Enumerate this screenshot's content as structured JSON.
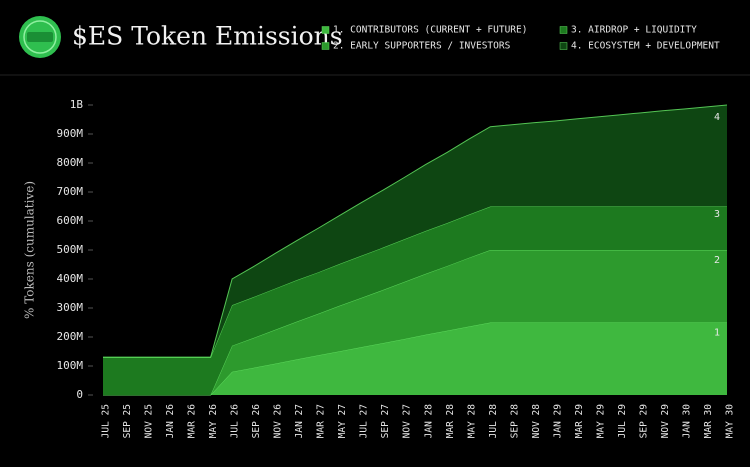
{
  "chart_data": {
    "type": "stacked_area",
    "title": "$ES Token Emissions",
    "y_label": "% Tokens (cumulative)",
    "categories": [
      "JUL 25",
      "SEP 25",
      "NOV 25",
      "JAN 26",
      "MAR 26",
      "MAY 26",
      "JUL 26",
      "SEP 26",
      "NOV 26",
      "JAN 27",
      "MAR 27",
      "MAY 27",
      "JUL 27",
      "SEP 27",
      "NOV 27",
      "JAN 28",
      "MAR 28",
      "MAY 28",
      "JUL 28",
      "SEP 28",
      "NOV 28",
      "JAN 29",
      "MAR 29",
      "MAY 29",
      "JUL 29",
      "SEP 29",
      "NOV 29",
      "JAN 30",
      "MAR 30",
      "MAY 30"
    ],
    "series": [
      {
        "name": "1. CONTRIBUTORS (CURRENT + FUTURE)",
        "tag": "1",
        "color": "#3fb83f",
        "values": [
          0,
          0,
          0,
          0,
          0,
          0,
          80,
          94,
          108,
          123,
          137,
          151,
          165,
          179,
          193,
          208,
          222,
          236,
          250,
          250,
          250,
          250,
          250,
          250,
          250,
          250,
          250,
          250,
          250,
          250
        ]
      },
      {
        "name": "2. EARLY SUPPORTERS / INVESTORS",
        "tag": "2",
        "color": "#2d9a2d",
        "values": [
          0,
          0,
          0,
          0,
          0,
          0,
          90,
          103,
          117,
          130,
          143,
          157,
          170,
          183,
          197,
          210,
          223,
          237,
          250,
          250,
          250,
          250,
          250,
          250,
          250,
          250,
          250,
          250,
          250,
          250
        ]
      },
      {
        "name": "3. AIRDROP + LIQUIDITY",
        "tag": "3",
        "color": "#1d7a1f",
        "values": [
          130,
          130,
          130,
          130,
          130,
          130,
          140,
          141,
          142,
          143,
          143,
          144,
          145,
          146,
          147,
          148,
          148,
          149,
          150,
          150,
          150,
          150,
          150,
          150,
          150,
          150,
          150,
          150,
          150,
          150
        ]
      },
      {
        "name": "4. ECOSYSTEM + DEVELOPMENT",
        "tag": "4",
        "color": "#0e4612",
        "values": [
          0,
          0,
          0,
          0,
          0,
          0,
          90,
          105,
          121,
          136,
          152,
          167,
          183,
          198,
          213,
          229,
          244,
          260,
          275,
          282,
          289,
          295,
          302,
          309,
          316,
          323,
          330,
          336,
          343,
          350
        ]
      }
    ],
    "ylim": [
      0,
      1000
    ],
    "yticks": [
      0,
      {
        "value": 100,
        "label": "100M"
      },
      {
        "value": 200,
        "label": "200M"
      },
      {
        "value": 300,
        "label": "300M"
      },
      {
        "value": 400,
        "label": "400M"
      },
      {
        "value": 500,
        "label": "500M"
      },
      {
        "value": 600,
        "label": "600M"
      },
      {
        "value": 700,
        "label": "700M"
      },
      {
        "value": 800,
        "label": "800M"
      },
      {
        "value": 900,
        "label": "900M"
      },
      {
        "value": 1000,
        "label": "1B"
      }
    ]
  }
}
